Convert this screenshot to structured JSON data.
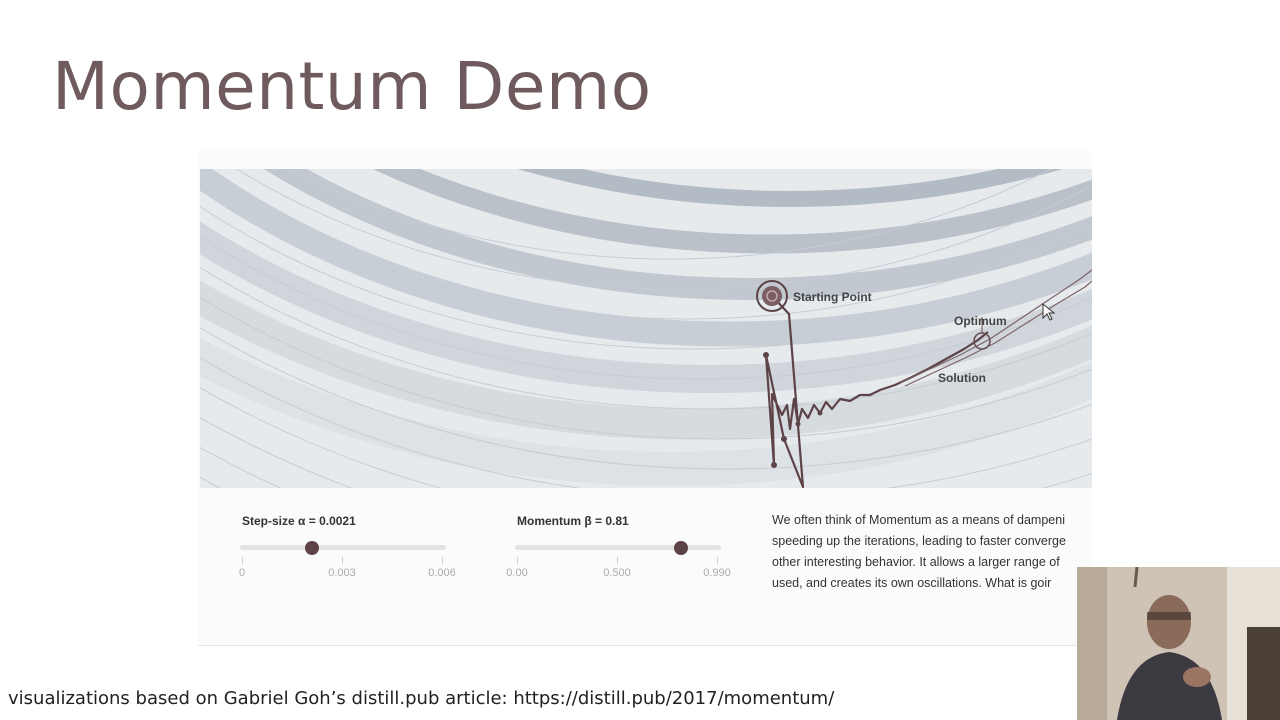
{
  "slide": {
    "title": "Momentum Demo",
    "footer": "visualizations based on Gabriel Goh’s distill.pub article: https://distill.pub/2017/momentum/"
  },
  "plot": {
    "starting_point_label": "Starting Point",
    "optimum_label": "Optimum",
    "solution_label": "Solution",
    "colors": {
      "path": "#5d4347",
      "contour_light": "#e4e8eb",
      "contour_dark": "#b9c0c8"
    }
  },
  "controls": {
    "step_size": {
      "label": "Step-size α = 0.0021",
      "value": 0.0021,
      "min": 0,
      "max": 0.006,
      "ticks": [
        "0",
        "0.003",
        "0.006"
      ]
    },
    "momentum": {
      "label": "Momentum β = 0.81",
      "value": 0.81,
      "min": 0,
      "max": 0.99,
      "ticks": [
        "0.00",
        "0.500",
        "0.990"
      ]
    }
  },
  "description": {
    "lines": [
      "We often think of Momentum as a means of dampeni",
      "speeding up the iterations, leading to faster converge",
      "other interesting behavior. It allows a larger range of",
      "used, and creates its own oscillations. What is goir"
    ]
  },
  "webcam": {
    "icon": "presenter-video-icon"
  }
}
